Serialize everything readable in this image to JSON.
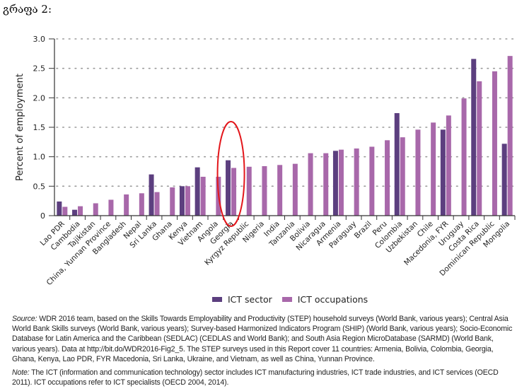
{
  "heading": "გრაფა 2:",
  "chart_data": {
    "type": "bar",
    "title": "",
    "xlabel": "",
    "ylabel": "Percent of employment",
    "ylim": [
      0,
      3.0
    ],
    "yticks": [
      0,
      0.5,
      1.0,
      1.5,
      2.0,
      2.5,
      3.0
    ],
    "ytick_labels": [
      "0",
      "0.5",
      "1.0",
      "1.5",
      "2.0",
      "2.5",
      "3.0"
    ],
    "grid": "horizontal dotted",
    "legend_position": "bottom-center",
    "highlighted_category": "Georgia",
    "categories": [
      "Lao PDR",
      "Cambodia",
      "Tajikistan",
      "China, Yunnan Province",
      "Bangladesh",
      "Nepal",
      "Sri Lanka",
      "Ghana",
      "Kenya",
      "Vietnam",
      "Angola",
      "Georgia",
      "Kyrgyz Republic",
      "Nigeria",
      "India",
      "Tanzania",
      "Bolivia",
      "Nicaragua",
      "Armenia",
      "Paraguay",
      "Brazil",
      "Peru",
      "Colombia",
      "Uzbekistan",
      "Chile",
      "Macedonia, FYR",
      "Uruguay",
      "Costa Rica",
      "Dominican Republic",
      "Mongolia"
    ],
    "series": [
      {
        "name": "ICT sector",
        "color": "#5c3f7f",
        "values": [
          0.24,
          0.1,
          null,
          null,
          null,
          null,
          0.7,
          null,
          0.5,
          0.82,
          null,
          0.94,
          null,
          null,
          null,
          null,
          null,
          null,
          1.1,
          null,
          null,
          null,
          1.74,
          null,
          null,
          1.46,
          null,
          2.66,
          null,
          1.22
        ]
      },
      {
        "name": "ICT occupations",
        "color": "#a868aa",
        "values": [
          0.15,
          0.16,
          0.21,
          0.27,
          0.36,
          0.38,
          0.4,
          0.48,
          0.5,
          0.66,
          0.66,
          0.81,
          0.83,
          0.84,
          0.86,
          0.88,
          1.06,
          1.06,
          1.12,
          1.14,
          1.17,
          1.28,
          1.33,
          1.46,
          1.58,
          1.7,
          1.99,
          2.28,
          2.45,
          2.71
        ]
      }
    ]
  },
  "legend": [
    {
      "label": "ICT sector",
      "color": "#5c3f7f"
    },
    {
      "label": "ICT occupations",
      "color": "#a868aa"
    }
  ],
  "footer": {
    "source_label": "Source:",
    "source_text": " WDR 2016 team, based on the Skills Towards Employability and Productivity (STEP) household surveys (World Bank, various years); Central Asia World Bank Skills surveys (World Bank, various years); Survey-based Harmonized Indicators Program (SHIP) (World Bank, various years); Socio-Economic Database for Latin America and the Caribbean (SEDLAC) (CEDLAS and World Bank); and South Asia Region MicroDatabase (SARMD) (World Bank, various years). Data at http://bit.do/WDR2016-Fig2_5. The STEP surveys used in this Report cover 11 countries: Armenia, Bolivia, Colombia, Georgia, Ghana, Kenya, Lao PDR, FYR Macedonia, Sri Lanka, Ukraine, and Vietnam, as well as China, Yunnan Province.",
    "note_label": "Note:",
    "note_text": " The ICT (information and communication technology) sector includes ICT manufacturing industries, ICT trade industries, and ICT services (OECD 2011). ICT occupations refer to ICT specialists (OECD 2004, 2014)."
  }
}
